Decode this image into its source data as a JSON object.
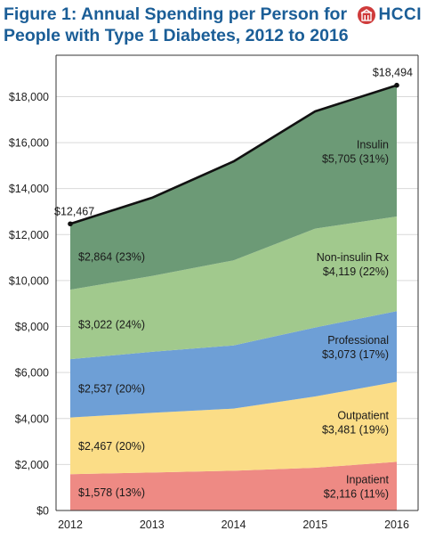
{
  "title_line1": "Figure 1: Annual Spending per Person for",
  "title_line2": "People with Type 1 Diabetes, 2012 to 2016",
  "brand": "HCCI",
  "colors": {
    "title": "#1b5e97",
    "inpatient": "#ee8a84",
    "outpatient": "#fbdd87",
    "professional": "#6e9fd6",
    "non_insulin_rx": "#a1c98d",
    "insulin": "#6c9a76",
    "total_line": "#111111",
    "logo": "#cf3b3b"
  },
  "chart_data": {
    "type": "area",
    "stacked": true,
    "x": [
      2012,
      2013,
      2014,
      2015,
      2016
    ],
    "x_tick_labels": [
      "2012",
      "2013",
      "2014",
      "2015",
      "2016"
    ],
    "ylim": [
      0,
      19800
    ],
    "y_ticks": [
      0,
      2000,
      4000,
      6000,
      8000,
      10000,
      12000,
      14000,
      16000,
      18000
    ],
    "y_tick_labels": [
      "$0",
      "$2,000",
      "$4,000",
      "$6,000",
      "$8,000",
      "$10,000",
      "$12,000",
      "$14,000",
      "$16,000",
      "$18,000"
    ],
    "series": [
      {
        "name": "Inpatient",
        "values": [
          1578,
          1650,
          1730,
          1860,
          2116
        ],
        "label_start": "$1,578 (13%)",
        "label_end": "$2,116 (11%)"
      },
      {
        "name": "Outpatient",
        "values": [
          2467,
          2600,
          2700,
          3100,
          3481
        ],
        "label_start": "$2,467 (20%)",
        "label_end": "$3,481 (19%)"
      },
      {
        "name": "Professional",
        "values": [
          2537,
          2650,
          2750,
          3000,
          3073
        ],
        "label_start": "$2,537 (20%)",
        "label_end": "$3,073 (17%)"
      },
      {
        "name": "Non-insulin Rx",
        "values": [
          3022,
          3300,
          3700,
          4300,
          4119
        ],
        "label_start": "$3,022 (24%)",
        "label_end": "$4,119 (22%)"
      },
      {
        "name": "Insulin",
        "values": [
          2864,
          3400,
          4300,
          5100,
          5705
        ],
        "label_start": "$2,864 (23%)",
        "label_end": "$5,705 (31%)"
      }
    ],
    "totals": [
      12467,
      13600,
      15180,
      17360,
      18494
    ],
    "total_label_start": "$12,467",
    "total_label_end": "$18,494"
  }
}
